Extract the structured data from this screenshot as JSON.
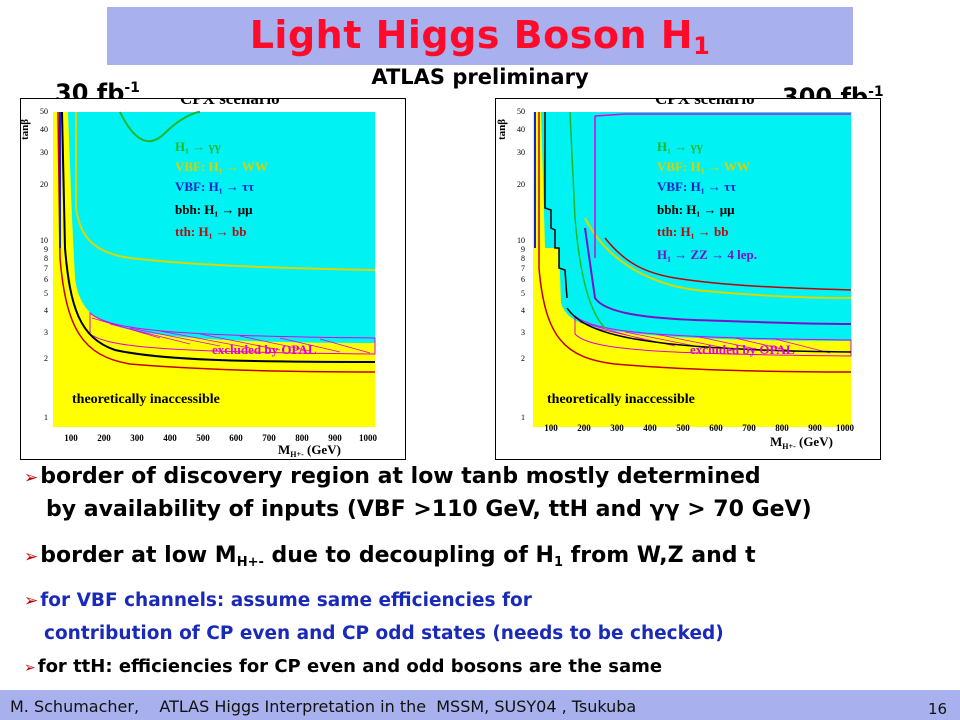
{
  "slide": {
    "title": "Light Higgs Boson H",
    "title_subscript": "1",
    "subtitle": "ATLAS preliminary",
    "lumi_left": "30 fb",
    "lumi_right": "300 fb",
    "lumi_exp": "-1"
  },
  "plots": {
    "scenario": "CPX scenario",
    "ylabel": "tanβ",
    "xlabel": "M",
    "xlabel_sub": "H+-",
    "xlabel_unit": "(GeV)",
    "xticks": [
      "100",
      "200",
      "300",
      "400",
      "500",
      "600",
      "700",
      "800",
      "900",
      "1000"
    ],
    "yticks": [
      "1",
      "2",
      "3",
      "4",
      "5",
      "6",
      "7",
      "8",
      "9",
      "10",
      "20",
      "30",
      "40",
      "50"
    ],
    "region_inaccessible": "theoretically inaccessible",
    "region_excluded": "excluded by OPAL",
    "legend": [
      {
        "text": "H₁ → γγ",
        "color": "#1fb82a"
      },
      {
        "text": "VBF: H₁ → WW",
        "color": "#e0d000"
      },
      {
        "text": "VBF: H₁ → ττ",
        "color": "#1424c8"
      },
      {
        "text": "bbh: H₁ → μμ",
        "color": "#000000"
      },
      {
        "text": "tth: H₁ → bb",
        "color": "#b01010"
      },
      {
        "text": "H₁ → ZZ → 4 lep.",
        "color": "#7a10c8"
      }
    ]
  },
  "bullets": {
    "b1_line1": "border of discovery region at low tanb mostly determined",
    "b1_line2": "by availability of inputs (VBF >110 GeV, ttH and γγ > 70 GeV)",
    "b2_pre": "border at low M",
    "b2_sub": "H+-",
    "b2_post": " due to decoupling of H",
    "b2_sub2": "1",
    "b2_end": " from W,Z and t",
    "b3_line1": "for VBF channels: assume same efficiencies for",
    "b3_line2": "contribution of CP even and CP odd states (needs to be checked)",
    "b4": "for ttH: efficiencies for CP even and odd bosons are the same"
  },
  "footer": {
    "text": "M. Schumacher,    ATLAS Higgs Interpretation in the  MSSM, SUSY04 , Tsukuba",
    "page": "16"
  },
  "colors": {
    "title": "#ff0a2a",
    "bar": "#a8b0ee",
    "cyan": "#00f2f2",
    "yellow": "#ffff00",
    "arrow": "#c00000",
    "blue_text": "#1a2ab8"
  }
}
